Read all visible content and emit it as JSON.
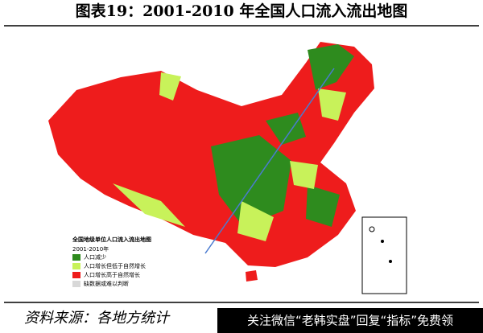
{
  "header": {
    "title": "图表19：2001-2010 年全国人口流入流出地图"
  },
  "legend": {
    "title": "全国地级单位人口流入流出地图",
    "subtitle": "2001-2010年",
    "items": [
      {
        "label": "人口减少",
        "color": "#2e8b1e"
      },
      {
        "label": "人口增长但低于自然增长",
        "color": "#c8f25a"
      },
      {
        "label": "人口增长高于自然增长",
        "color": "#ee1c1c"
      },
      {
        "label": "缺数据或难以判断",
        "color": "#d8d8d8"
      }
    ]
  },
  "footer": {
    "source": "资料来源：各地方统计",
    "watermark": "关注微信“老韩实盘”回复“指标”免费领"
  }
}
